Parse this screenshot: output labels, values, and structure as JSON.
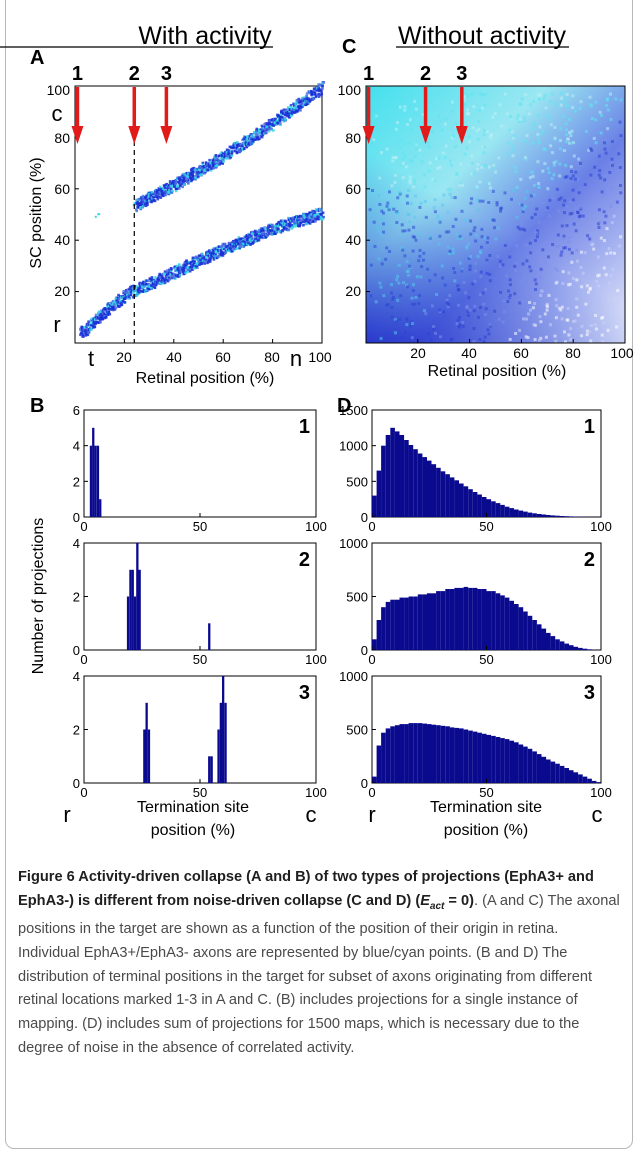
{
  "figure": {
    "panel_letters": [
      "A",
      "B",
      "C",
      "D"
    ],
    "titles": {
      "with_activity": "With activity",
      "without_activity": "Without activity"
    },
    "top_plots": {
      "xlabel": "Retinal position (%)",
      "ylabel": "SC position (%)",
      "a_ytick_labels": [
        "20",
        "40",
        "60",
        "80",
        "100"
      ],
      "a_xtick_labels": [
        "20",
        "40",
        "60",
        "80"
      ],
      "a_xend_label": "100",
      "c_ytick_labels": [
        "20",
        "40",
        "60",
        "80",
        "100"
      ],
      "c_xtick_labels": [
        "20",
        "40",
        "60",
        "80",
        "100"
      ],
      "axis_letters": {
        "t": "t",
        "n": "n",
        "c": "c",
        "r": "r"
      },
      "marker_labels": [
        "1",
        "2",
        "3"
      ]
    },
    "histograms": {
      "ylabel": "Number of projections",
      "xlabel_line1": "Termination site",
      "xlabel_line2": "position (%)",
      "end_labels": {
        "left": "r",
        "right": "c"
      },
      "x_tick_labels": [
        "0",
        "50",
        "100"
      ],
      "b_row_labels": [
        "1",
        "2",
        "3"
      ],
      "d_row_labels": [
        "1",
        "2",
        "3"
      ],
      "b_y_ticks": [
        [
          "0",
          "2",
          "4",
          "6"
        ],
        [
          "0",
          "2",
          "4"
        ],
        [
          "0",
          "2",
          "4"
        ]
      ],
      "d_y_ticks": [
        [
          "0",
          "500",
          "1000",
          "1500"
        ],
        [
          "0",
          "500",
          "1000"
        ],
        [
          "0",
          "500",
          "1000"
        ]
      ]
    }
  },
  "chart_data": [
    {
      "type": "scatter",
      "panel": "A",
      "title": "With activity",
      "xlabel": "Retinal position (%)",
      "ylabel": "SC position (%)",
      "xlim": [
        0,
        100
      ],
      "ylim": [
        0,
        100
      ],
      "series": [
        {
          "points": [
            [
              2,
              4
            ],
            [
              10,
              11
            ],
            [
              20,
              19
            ],
            [
              24,
              21
            ],
            [
              40,
              28
            ],
            [
              60,
              37
            ],
            [
              80,
              45
            ],
            [
              100,
              51
            ]
          ]
        },
        {
          "points": [
            [
              24,
              54
            ],
            [
              40,
              62
            ],
            [
              60,
              73
            ],
            [
              80,
              86
            ],
            [
              100,
              100
            ]
          ]
        }
      ],
      "markers": [
        {
          "label": "1",
          "x": 1
        },
        {
          "label": "2",
          "x": 24
        },
        {
          "label": "3",
          "x": 37
        }
      ],
      "dashed_line_x": 24
    },
    {
      "type": "heatmap",
      "panel": "C",
      "title": "Without activity",
      "xlabel": "Retinal position (%)",
      "ylabel": "",
      "xlim": [
        0,
        100
      ],
      "ylim": [
        0,
        100
      ],
      "markers": [
        {
          "label": "1",
          "x": 1
        },
        {
          "label": "2",
          "x": 23
        },
        {
          "label": "3",
          "x": 37
        }
      ]
    },
    {
      "type": "bar",
      "panel": "B1",
      "xlim": [
        0,
        100
      ],
      "ylim": [
        0,
        6
      ],
      "x": [
        3,
        4,
        5,
        6,
        7
      ],
      "values": [
        4,
        5,
        4,
        4,
        1
      ]
    },
    {
      "type": "bar",
      "panel": "B2",
      "xlim": [
        0,
        100
      ],
      "ylim": [
        0,
        4
      ],
      "x": [
        19,
        20,
        21,
        22,
        23,
        24,
        54
      ],
      "values": [
        2,
        3,
        3,
        2,
        4,
        3,
        1
      ]
    },
    {
      "type": "bar",
      "panel": "B3",
      "xlim": [
        0,
        100
      ],
      "ylim": [
        0,
        4
      ],
      "x": [
        26,
        27,
        28,
        54,
        55,
        58,
        59,
        60,
        61
      ],
      "values": [
        2,
        3,
        2,
        1,
        1,
        2,
        3,
        4,
        3
      ]
    },
    {
      "type": "bar",
      "panel": "D1",
      "xlim": [
        0,
        100
      ],
      "ylim": [
        0,
        1500
      ],
      "x": [
        1,
        3,
        5,
        7,
        9,
        11,
        13,
        15,
        17,
        19,
        21,
        23,
        25,
        27,
        29,
        31,
        33,
        35,
        37,
        39,
        41,
        43,
        45,
        47,
        49,
        51,
        53,
        55,
        57,
        59,
        61,
        63,
        65,
        67,
        69,
        71,
        73,
        75,
        77,
        79,
        81,
        83,
        85,
        87,
        89,
        91,
        93,
        95,
        97,
        99
      ],
      "values": [
        300,
        650,
        1000,
        1150,
        1250,
        1200,
        1150,
        1080,
        1010,
        950,
        890,
        840,
        790,
        740,
        690,
        640,
        600,
        555,
        515,
        470,
        430,
        390,
        350,
        315,
        280,
        250,
        220,
        195,
        170,
        145,
        125,
        105,
        90,
        75,
        62,
        52,
        42,
        35,
        28,
        22,
        18,
        14,
        11,
        8,
        6,
        4,
        3,
        2,
        1,
        1
      ]
    },
    {
      "type": "bar",
      "panel": "D2",
      "xlim": [
        0,
        100
      ],
      "ylim": [
        0,
        1000
      ],
      "x": [
        1,
        3,
        5,
        7,
        9,
        11,
        13,
        15,
        17,
        19,
        21,
        23,
        25,
        27,
        29,
        31,
        33,
        35,
        37,
        39,
        41,
        43,
        45,
        47,
        49,
        51,
        53,
        55,
        57,
        59,
        61,
        63,
        65,
        67,
        69,
        71,
        73,
        75,
        77,
        79,
        81,
        83,
        85,
        87,
        89,
        91,
        93,
        95,
        97,
        99
      ],
      "values": [
        100,
        280,
        400,
        450,
        470,
        470,
        490,
        490,
        500,
        500,
        520,
        520,
        530,
        530,
        550,
        550,
        570,
        570,
        580,
        580,
        590,
        580,
        580,
        570,
        570,
        550,
        550,
        530,
        510,
        490,
        460,
        430,
        400,
        360,
        320,
        280,
        240,
        200,
        160,
        130,
        100,
        80,
        60,
        45,
        30,
        20,
        12,
        7,
        3,
        1
      ]
    },
    {
      "type": "bar",
      "panel": "D3",
      "xlim": [
        0,
        100
      ],
      "ylim": [
        0,
        1000
      ],
      "x": [
        1,
        3,
        5,
        7,
        9,
        11,
        13,
        15,
        17,
        19,
        21,
        23,
        25,
        27,
        29,
        31,
        33,
        35,
        37,
        39,
        41,
        43,
        45,
        47,
        49,
        51,
        53,
        55,
        57,
        59,
        61,
        63,
        65,
        67,
        69,
        71,
        73,
        75,
        77,
        79,
        81,
        83,
        85,
        87,
        89,
        91,
        93,
        95,
        97,
        99
      ],
      "values": [
        60,
        350,
        470,
        510,
        530,
        540,
        550,
        550,
        560,
        560,
        560,
        555,
        550,
        545,
        540,
        535,
        530,
        520,
        515,
        510,
        500,
        490,
        480,
        470,
        460,
        450,
        440,
        430,
        420,
        410,
        395,
        380,
        360,
        340,
        320,
        295,
        270,
        245,
        220,
        200,
        180,
        160,
        140,
        120,
        100,
        80,
        60,
        40,
        20,
        8
      ]
    }
  ],
  "caption": {
    "bold_a": "Figure 6 Activity-driven collapse (A and B) of two types of projections (EphA3+ and EphA3-) is different from noise-driven collapse (C and D) (",
    "bold_var": "E",
    "bold_sub": "act",
    "bold_b": " = 0)",
    "body": ". (A and C) The axonal positions in the target are shown as a function of the position of their origin in retina. Individual EphA3+/EphA3- axons are represented by blue/cyan points. (B and D) The distribution of terminal positions in the target for subset of axons originating from different retinal locations marked 1-3 in A and C. (B) includes projections for a single instance of mapping. (D) includes sum of projections for 1500 maps, which is necessary due to the degree of noise in the absence of correlated activity."
  },
  "colors": {
    "bar": "#0a0a8f",
    "dot_blue": "#1a2fd6",
    "dot_cyan": "#36d6e6",
    "arrow": "#e11a1a"
  }
}
